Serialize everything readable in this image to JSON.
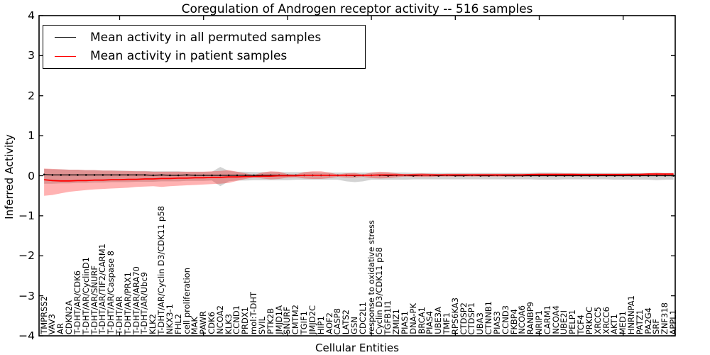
{
  "figure": {
    "title": "Coregulation of Androgen receptor activity -- 516 samples",
    "xlabel": "Cellular Entities",
    "ylabel": "Inferred Activity"
  },
  "legend": {
    "entries": [
      {
        "label": "Mean activity in all permuted samples",
        "color": "#000000"
      },
      {
        "label": "Mean activity in patient samples",
        "color": "#ff0000"
      }
    ]
  },
  "chart_data": {
    "type": "line",
    "title": "Coregulation of Androgen receptor activity -- 516 samples",
    "xlabel": "Cellular Entities",
    "ylabel": "Inferred Activity",
    "ylim": [
      -4,
      4
    ],
    "ytick_values": [
      4,
      3,
      2,
      1,
      0,
      -1,
      -2,
      -3,
      -4
    ],
    "x_major_ticks": [
      10,
      20,
      30,
      40,
      50,
      60,
      70
    ],
    "grid": false,
    "legend_position": "upper left",
    "categories": [
      "TMPRSS2",
      "VAV3",
      "AR",
      "CDKN2A",
      "T-DHT/AR/CDK6",
      "T-DHT/AR/CyclinD1",
      "T-DHT/AR/SNURF",
      "T-DHT/AR/TIF2/CARM1",
      "T-DHT/AR/Caspase 8",
      "T-DHT/AR",
      "T-DHT/AR/PRX1",
      "T-DHT/AR/ARA70",
      "T-DHT/AR/Ubc9",
      "KLK2",
      "T-DHT/AR/Cyclin D3/CDK11 p58",
      "NKX3-1",
      "FHL2",
      "cell proliferation",
      "MAK",
      "PAWR",
      "CDK6",
      "NCOA2",
      "KLK3",
      "CCND1",
      "PRDX1",
      "mol:T-DHT",
      "SVIL",
      "PTK2B",
      "JMJD1A",
      "SNURF",
      "CMTM2",
      "TGIF1",
      "JMJD2C",
      "HIP1",
      "AOF2",
      "CASP8",
      "LATS2",
      "GSN",
      "CDC2L1",
      "response to oxidative stress",
      "Cyclin D3/CDK11 p58",
      "TGFB1I1",
      "ZMIZ1",
      "PIAS1",
      "DNA-PK",
      "BRCA1",
      "PIAS4",
      "UBE3A",
      "TMF1",
      "RPS6KA3",
      "CTDSP2",
      "CTDSP1",
      "UBA3",
      "CTNNB1",
      "PIAS3",
      "CCND3",
      "FKBP4",
      "NCOA6",
      "RANBP9",
      "NRIP1",
      "CARM1",
      "NCOA4",
      "UBE2I",
      "PELP1",
      "TCF4",
      "PRKDC",
      "XRCC5",
      "XRCC6",
      "AKT1",
      "MED1",
      "HNRNPA1",
      "PATZ1",
      "PA2G4",
      "SRF",
      "ZNF318",
      "APPL1"
    ],
    "series": [
      {
        "name": "Mean activity in all permuted samples",
        "color": "#000000",
        "style": "line+dots",
        "values": [
          0.03,
          0.02,
          0.02,
          0.02,
          0.02,
          0.02,
          0.02,
          0.02,
          0.02,
          0.02,
          0.02,
          0.02,
          0.02,
          0.01,
          0.02,
          0.01,
          0.01,
          0.02,
          0.01,
          0.01,
          0.01,
          0.01,
          0.01,
          0.01,
          0.01,
          0.01,
          0.01,
          0.01,
          0.01,
          0.01,
          0.01,
          0.01,
          0.01,
          0.01,
          0.01,
          0.01,
          0.01,
          0.0,
          0.01,
          0.01,
          0.01,
          0.0,
          0.01,
          0.01,
          0.0,
          0.01,
          0.01,
          0.0,
          0.01,
          0.0,
          0.0,
          0.01,
          0.0,
          0.0,
          0.01,
          0.0,
          0.0,
          0.0,
          0.0,
          0.0,
          0.0,
          0.0,
          0.0,
          0.0,
          0.0,
          0.0,
          0.0,
          0.0,
          0.0,
          0.0,
          0.0,
          0.0,
          0.0,
          0.0,
          0.0,
          0.0
        ]
      },
      {
        "name": "Mean activity in patient samples",
        "color": "#ff0000",
        "style": "line",
        "values": [
          -0.1,
          -0.12,
          -0.13,
          -0.13,
          -0.12,
          -0.12,
          -0.11,
          -0.11,
          -0.1,
          -0.1,
          -0.09,
          -0.09,
          -0.08,
          -0.08,
          -0.07,
          -0.07,
          -0.06,
          -0.06,
          -0.05,
          -0.05,
          -0.04,
          -0.04,
          -0.03,
          -0.03,
          -0.02,
          -0.02,
          -0.01,
          -0.01,
          0.0,
          0.0,
          0.0,
          0.01,
          0.01,
          0.01,
          0.01,
          0.01,
          0.01,
          0.01,
          0.01,
          0.01,
          0.02,
          0.02,
          0.02,
          0.02,
          0.02,
          0.02,
          0.02,
          0.02,
          0.02,
          0.02,
          0.02,
          0.02,
          0.02,
          0.02,
          0.02,
          0.02,
          0.02,
          0.02,
          0.03,
          0.03,
          0.03,
          0.03,
          0.03,
          0.03,
          0.03,
          0.03,
          0.03,
          0.03,
          0.03,
          0.03,
          0.03,
          0.03,
          0.04,
          0.04,
          0.04,
          0.04
        ]
      }
    ],
    "bands": [
      {
        "name": "Std of activity in all permuted samples",
        "color": "rgba(128,128,128,0.35)",
        "upper": [
          0.17,
          0.16,
          0.16,
          0.15,
          0.15,
          0.14,
          0.14,
          0.13,
          0.13,
          0.13,
          0.12,
          0.12,
          0.12,
          0.11,
          0.11,
          0.11,
          0.11,
          0.1,
          0.1,
          0.1,
          0.1,
          0.22,
          0.12,
          0.1,
          0.1,
          0.09,
          0.09,
          0.09,
          0.09,
          0.09,
          0.09,
          0.09,
          0.09,
          0.08,
          0.08,
          0.08,
          0.08,
          0.08,
          0.08,
          0.08,
          0.08,
          0.08,
          0.08,
          0.08,
          0.07,
          0.07,
          0.07,
          0.07,
          0.07,
          0.07,
          0.07,
          0.07,
          0.07,
          0.07,
          0.07,
          0.07,
          0.07,
          0.07,
          0.07,
          0.08,
          0.08,
          0.08,
          0.07,
          0.07,
          0.07,
          0.07,
          0.07,
          0.07,
          0.07,
          0.07,
          0.07,
          0.07,
          0.07,
          0.08,
          0.07,
          0.07
        ],
        "lower": [
          -0.2,
          -0.2,
          -0.19,
          -0.19,
          -0.18,
          -0.18,
          -0.17,
          -0.17,
          -0.16,
          -0.16,
          -0.16,
          -0.15,
          -0.15,
          -0.15,
          -0.14,
          -0.14,
          -0.14,
          -0.13,
          -0.13,
          -0.13,
          -0.12,
          -0.26,
          -0.14,
          -0.12,
          -0.12,
          -0.11,
          -0.11,
          -0.11,
          -0.11,
          -0.11,
          -0.1,
          -0.1,
          -0.1,
          -0.1,
          -0.1,
          -0.1,
          -0.14,
          -0.16,
          -0.14,
          -0.1,
          -0.1,
          -0.1,
          -0.1,
          -0.1,
          -0.09,
          -0.09,
          -0.09,
          -0.09,
          -0.09,
          -0.09,
          -0.09,
          -0.09,
          -0.09,
          -0.09,
          -0.09,
          -0.09,
          -0.09,
          -0.09,
          -0.09,
          -0.1,
          -0.1,
          -0.1,
          -0.09,
          -0.09,
          -0.09,
          -0.09,
          -0.09,
          -0.09,
          -0.1,
          -0.1,
          -0.1,
          -0.1,
          -0.1,
          -0.11,
          -0.1,
          -0.1
        ]
      },
      {
        "name": "Std of activity in patient samples",
        "color": "rgba(255,0,0,0.30)",
        "upper": [
          0.18,
          0.17,
          0.16,
          0.15,
          0.15,
          0.14,
          0.14,
          0.13,
          0.13,
          0.12,
          0.12,
          0.11,
          0.11,
          0.1,
          0.1,
          0.1,
          0.1,
          0.1,
          0.1,
          0.1,
          0.11,
          0.12,
          0.14,
          0.1,
          0.06,
          0.02,
          0.08,
          0.11,
          0.1,
          0.04,
          0.03,
          0.09,
          0.11,
          0.11,
          0.08,
          0.03,
          0.06,
          0.07,
          0.03,
          0.08,
          0.1,
          0.09,
          0.06,
          0.03,
          0.05,
          0.06,
          0.05,
          0.04,
          0.05,
          0.05,
          0.05,
          0.05,
          0.05,
          0.05,
          0.05,
          0.05,
          0.05,
          0.05,
          0.05,
          0.06,
          0.06,
          0.06,
          0.06,
          0.06,
          0.05,
          0.05,
          0.05,
          0.05,
          0.05,
          0.05,
          0.06,
          0.06,
          0.06,
          0.07,
          0.06,
          0.07
        ],
        "lower": [
          -0.5,
          -0.48,
          -0.44,
          -0.4,
          -0.38,
          -0.36,
          -0.34,
          -0.33,
          -0.32,
          -0.31,
          -0.3,
          -0.28,
          -0.27,
          -0.26,
          -0.28,
          -0.26,
          -0.25,
          -0.24,
          -0.23,
          -0.22,
          -0.21,
          -0.2,
          -0.18,
          -0.13,
          -0.08,
          -0.04,
          -0.07,
          -0.09,
          -0.08,
          -0.05,
          -0.04,
          -0.07,
          -0.08,
          -0.08,
          -0.06,
          -0.03,
          -0.05,
          -0.05,
          -0.03,
          -0.06,
          -0.07,
          -0.06,
          -0.04,
          -0.02,
          -0.03,
          -0.03,
          -0.03,
          -0.02,
          -0.02,
          -0.02,
          -0.02,
          -0.02,
          -0.02,
          -0.02,
          -0.02,
          -0.02,
          -0.02,
          -0.02,
          -0.01,
          -0.01,
          -0.01,
          -0.01,
          -0.01,
          -0.01,
          -0.01,
          -0.01,
          -0.01,
          -0.01,
          -0.01,
          -0.01,
          0.0,
          0.0,
          0.0,
          0.0,
          0.0,
          0.01
        ]
      }
    ]
  }
}
